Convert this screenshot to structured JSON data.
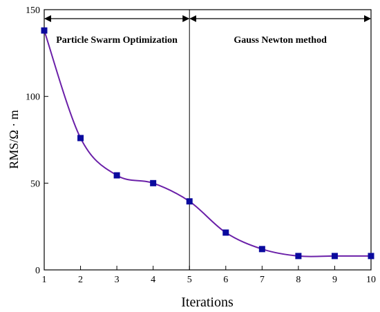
{
  "chart_data": {
    "type": "line",
    "title": "",
    "xlabel": "Iterations",
    "ylabel": "RMS/Ω · m",
    "xlim": [
      1,
      10
    ],
    "ylim": [
      0,
      150
    ],
    "x_ticks": [
      1,
      2,
      3,
      4,
      5,
      6,
      7,
      8,
      9,
      10
    ],
    "y_ticks": [
      0,
      50,
      100,
      150
    ],
    "grid": false,
    "series": [
      {
        "x": [
          1,
          2,
          3,
          4,
          5,
          6,
          7,
          8,
          9,
          10
        ],
        "values": [
          138,
          76,
          54.5,
          50,
          39.5,
          21.5,
          12,
          8,
          8,
          8
        ],
        "line_color": "#6a1fa8",
        "marker_color": "#0a0a9e",
        "marker": "square"
      }
    ],
    "annotations": [
      {
        "text": "Particle Swarm Optimization",
        "from_x": 1,
        "to_x": 5
      },
      {
        "text": "Gauss Newton method",
        "from_x": 5,
        "to_x": 10
      }
    ],
    "divider_x": 5
  }
}
